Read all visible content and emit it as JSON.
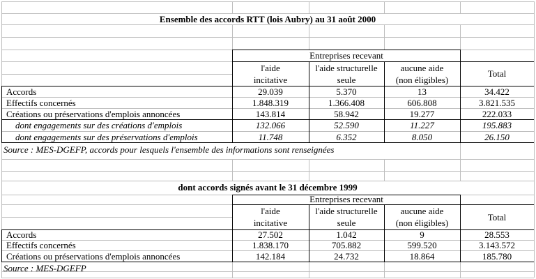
{
  "colors": {
    "gridline": "#bdbdbd",
    "border": "#000000",
    "text": "#000000",
    "background": "#ffffff"
  },
  "table1": {
    "title": "Ensemble des accords RTT (lois Aubry) au 31 août 2000",
    "group_header": "Entreprises recevant",
    "col_headers": [
      [
        "l'aide",
        "incitative"
      ],
      [
        "l'aide structurelle",
        "seule"
      ],
      [
        "aucune aide",
        "(non éligibles)"
      ],
      [
        "Total"
      ]
    ],
    "rows": [
      {
        "label": "Accords",
        "values": [
          "29.039",
          "5.370",
          "13",
          "34.422"
        ]
      },
      {
        "label": "Effectifs concernés",
        "values": [
          "1.848.319",
          "1.366.408",
          "606.808",
          "3.821.535"
        ]
      },
      {
        "label": "Créations ou préservations d'emplois annoncées",
        "values": [
          "143.814",
          "58.942",
          "19.277",
          "222.033"
        ]
      },
      {
        "label": "dont engagements sur des créations d'emplois",
        "values": [
          "132.066",
          "52.590",
          "11.227",
          "195.883"
        ]
      },
      {
        "label": "dont engagements sur des préservations d'emplois",
        "values": [
          "11.748",
          "6.352",
          "8.050",
          "26.150"
        ]
      }
    ],
    "source": "Source : MES-DGEFP, accords pour lesquels l'ensemble des informations sont renseignées"
  },
  "table2": {
    "title": "dont accords signés avant le 31 décembre 1999",
    "group_header": "Entreprises recevant",
    "col_headers": [
      [
        "l'aide",
        "incitative"
      ],
      [
        "l'aide structurelle",
        "seule"
      ],
      [
        "aucune aide",
        "(non éligibles)"
      ],
      [
        "Total"
      ]
    ],
    "rows": [
      {
        "label": "Accords",
        "values": [
          "27.502",
          "1.042",
          "9",
          "28.553"
        ]
      },
      {
        "label": "Effectifs concernés",
        "values": [
          "1.838.170",
          "705.882",
          "599.520",
          "3.143.572"
        ]
      },
      {
        "label": "Créations ou préservations d'emplois annoncées",
        "values": [
          "142.184",
          "24.732",
          "18.864",
          "185.780"
        ]
      }
    ],
    "source": "Source : MES-DGEFP"
  }
}
